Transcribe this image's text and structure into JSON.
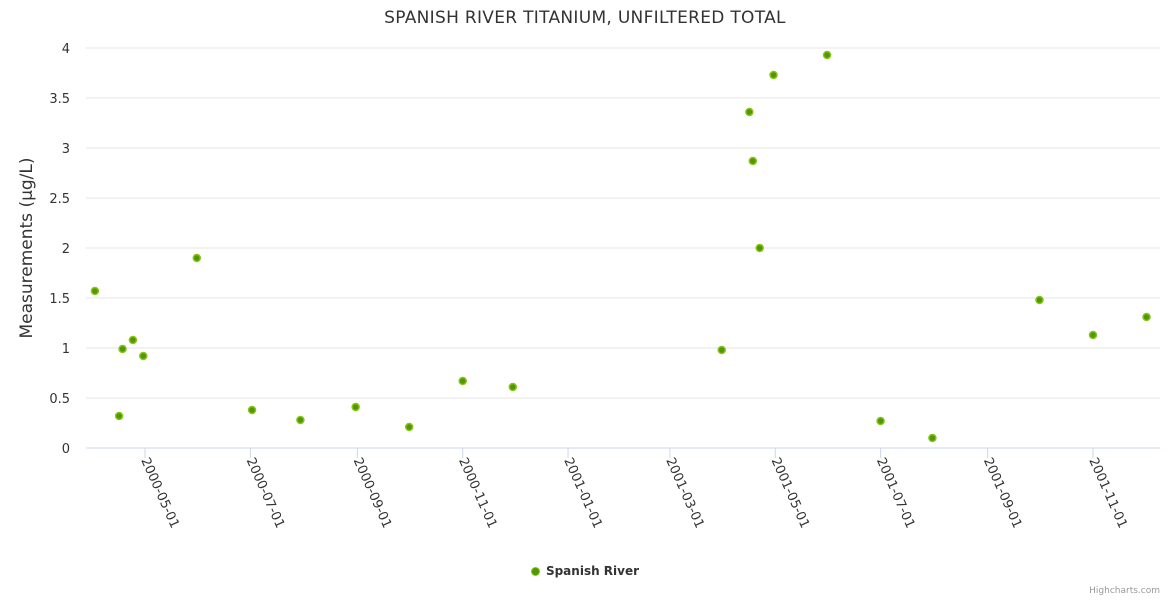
{
  "chart_data": {
    "type": "scatter",
    "title": "SPANISH RIVER TITANIUM, UNFILTERED TOTAL",
    "xlabel": "",
    "ylabel": "Measurements (µg/L)",
    "ylim": [
      0,
      4
    ],
    "y_ticks": [
      "0",
      "0.5",
      "1",
      "1.5",
      "2",
      "2.5",
      "3",
      "3.5",
      "4"
    ],
    "x_ticks": [
      "2000-05-01",
      "2000-07-01",
      "2000-09-01",
      "2000-11-01",
      "2001-01-01",
      "2001-03-01",
      "2001-05-01",
      "2001-07-01",
      "2001-09-01",
      "2001-11-01"
    ],
    "grid": true,
    "legend_placement": "bottom-center",
    "colors": {
      "marker_fill": "#4c9a00",
      "marker_stroke": "#8cc21a",
      "grid": "#e6e6e6"
    },
    "series": [
      {
        "name": "Spanish River",
        "points": [
          [
            "2000-04-02",
            1.57
          ],
          [
            "2000-04-16",
            0.32
          ],
          [
            "2000-04-18",
            0.99
          ],
          [
            "2000-04-24",
            1.08
          ],
          [
            "2000-04-30",
            0.92
          ],
          [
            "2000-05-31",
            1.9
          ],
          [
            "2000-07-02",
            0.38
          ],
          [
            "2000-07-30",
            0.28
          ],
          [
            "2000-08-31",
            0.41
          ],
          [
            "2000-10-01",
            0.21
          ],
          [
            "2000-11-01",
            0.67
          ],
          [
            "2000-11-30",
            0.61
          ],
          [
            "2001-03-31",
            0.98
          ],
          [
            "2001-04-16",
            3.36
          ],
          [
            "2001-04-18",
            2.87
          ],
          [
            "2001-04-22",
            2.0
          ],
          [
            "2001-04-30",
            3.73
          ],
          [
            "2001-05-31",
            3.93
          ],
          [
            "2001-07-01",
            0.27
          ],
          [
            "2001-07-31",
            0.1
          ],
          [
            "2001-10-01",
            1.48
          ],
          [
            "2001-11-01",
            1.13
          ],
          [
            "2001-12-02",
            1.31
          ]
        ]
      }
    ]
  },
  "credits": "Highcharts.com"
}
